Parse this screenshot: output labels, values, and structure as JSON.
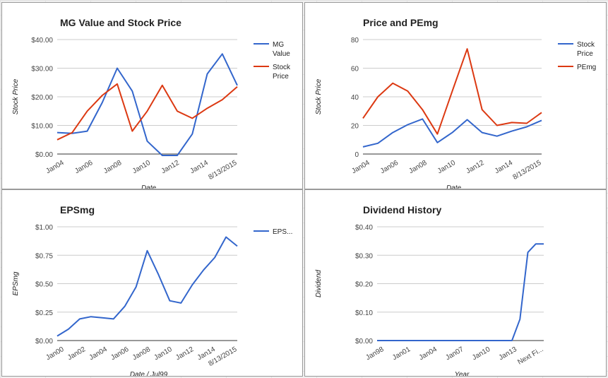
{
  "chart_data": [
    {
      "type": "line",
      "title": "MG Value and Stock Price",
      "xlabel": "Date",
      "ylabel": "Stock Price",
      "x_ticks": [
        "Jan04",
        "Jan06",
        "Jan08",
        "Jan10",
        "Jan12",
        "Jan14",
        "8/13/2015"
      ],
      "y_ticks": [
        "$0.00",
        "$10.00",
        "$20.00",
        "$30.00",
        "$40.00"
      ],
      "ylim": [
        0,
        40
      ],
      "grid": true,
      "legend_position": "right",
      "series": [
        {
          "name": "MG Value",
          "color": "#3366cc",
          "values": [
            7.5,
            7.2,
            8.0,
            18.0,
            30.0,
            22.0,
            4.5,
            -0.5,
            -0.5,
            7.0,
            28.0,
            35.0,
            24.0
          ]
        },
        {
          "name": "Stock Price",
          "color": "#dc3912",
          "values": [
            5.0,
            7.5,
            15.0,
            20.5,
            24.5,
            8.0,
            15.0,
            24.0,
            15.0,
            12.5,
            16.0,
            19.0,
            23.5
          ]
        }
      ]
    },
    {
      "type": "line",
      "title": "Price and PEmg",
      "xlabel": "Date",
      "ylabel": "Stock Price",
      "x_ticks": [
        "Jan04",
        "Jan06",
        "Jan08",
        "Jan10",
        "Jan12",
        "Jan14",
        "8/13/2015"
      ],
      "y_ticks": [
        "0",
        "20",
        "40",
        "60",
        "80"
      ],
      "ylim": [
        0,
        80
      ],
      "grid": true,
      "legend_position": "right",
      "series": [
        {
          "name": "Stock Price",
          "color": "#3366cc",
          "values": [
            5.0,
            7.5,
            15.0,
            20.5,
            24.5,
            8.0,
            15.0,
            24.0,
            15.0,
            12.5,
            16.0,
            19.0,
            23.5
          ]
        },
        {
          "name": "PEmg",
          "color": "#dc3912",
          "values": [
            25.0,
            40.0,
            49.5,
            44.0,
            31.0,
            14.0,
            44.0,
            73.5,
            31.0,
            20.0,
            22.0,
            21.5,
            29.0
          ]
        }
      ]
    },
    {
      "type": "line",
      "title": "EPSmg",
      "xlabel": "Date / Jul99",
      "ylabel": "EPSmg",
      "x_ticks": [
        "Jan00",
        "Jan02",
        "Jan04",
        "Jan06",
        "Jan08",
        "Jan10",
        "Jan12",
        "Jan14",
        "8/13/2015"
      ],
      "y_ticks": [
        "$0.00",
        "$0.25",
        "$0.50",
        "$0.75",
        "$1.00"
      ],
      "ylim": [
        0,
        1
      ],
      "grid": true,
      "legend_position": "right",
      "series": [
        {
          "name": "EPS...",
          "color": "#3366cc",
          "values": [
            0.04,
            0.1,
            0.19,
            0.21,
            0.2,
            0.19,
            0.3,
            0.47,
            0.79,
            0.58,
            0.35,
            0.33,
            0.49,
            0.62,
            0.73,
            0.91,
            0.83
          ]
        }
      ]
    },
    {
      "type": "line",
      "title": "Dividend History",
      "xlabel": "Year",
      "ylabel": "Dividend",
      "x_ticks": [
        "Jan98",
        "Jan01",
        "Jan04",
        "Jan07",
        "Jan10",
        "Jan13",
        "Next Fi..."
      ],
      "y_ticks": [
        "$0.00",
        "$0.10",
        "$0.20",
        "$0.30",
        "$0.40"
      ],
      "ylim": [
        0,
        0.4
      ],
      "grid": true,
      "legend_position": "none",
      "series": [
        {
          "name": "",
          "color": "#3366cc",
          "values": [
            0,
            0,
            0,
            0,
            0,
            0,
            0,
            0,
            0,
            0,
            0,
            0,
            0,
            0,
            0,
            0,
            0,
            0,
            0.075,
            0.31,
            0.34,
            0.34
          ]
        }
      ]
    }
  ]
}
